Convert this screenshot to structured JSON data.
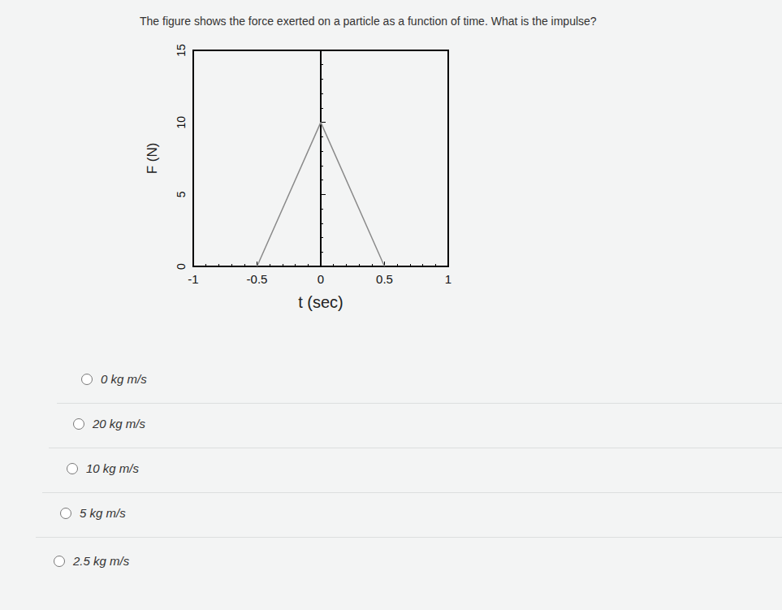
{
  "question": "The figure shows the force exerted on a particle as a function of time. What is the impulse?",
  "chart_data": {
    "type": "line",
    "x_label": "t (sec)",
    "y_label": "F (N)",
    "x": [
      -0.5,
      0,
      0.5
    ],
    "values": [
      0,
      10,
      0
    ],
    "color": "#8a8a8a",
    "xlim": [
      -1,
      1
    ],
    "xticks": [
      -1,
      -0.5,
      0,
      0.5,
      1
    ],
    "ylim": [
      0,
      15
    ],
    "yticks": [
      0,
      5,
      10,
      15
    ],
    "grid": false
  },
  "options": [
    "0 kg m/s",
    "20 kg m/s",
    "10 kg m/s",
    "5 kg m/s",
    "2.5 kg m/s"
  ]
}
